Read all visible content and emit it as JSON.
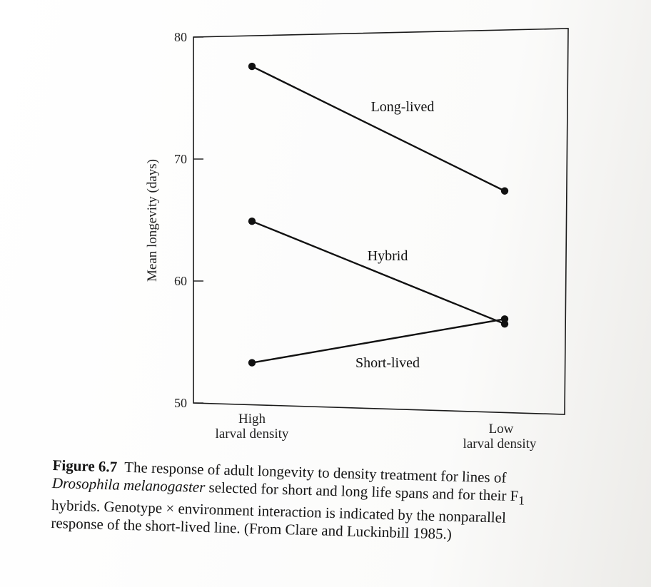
{
  "chart_data": {
    "type": "line",
    "ylabel": "Mean longevity (days)",
    "xlabel": "",
    "categories": [
      "High\nlarval density",
      "Low\nlarval density"
    ],
    "ylim": [
      50,
      80
    ],
    "yticks": [
      50,
      60,
      70,
      80
    ],
    "grid": false,
    "series": [
      {
        "name": "Long-lived",
        "values": [
          77.6,
          67.5
        ]
      },
      {
        "name": "Hybrid",
        "values": [
          64.9,
          56.6
        ]
      },
      {
        "name": "Short-lived",
        "values": [
          53.3,
          57.0
        ]
      }
    ]
  },
  "caption": {
    "label": "Figure 6.7",
    "lines": [
      "The response of adult longevity to density treatment for lines of",
      "selected for short and long life spans and for their F",
      "hybrids. Genotype × environment interaction is indicated by the nonparallel",
      "response of the short-lived line. (From Clare and Luckinbill 1985.)"
    ],
    "species": "Drosophila melanogaster",
    "subscript": "1"
  }
}
